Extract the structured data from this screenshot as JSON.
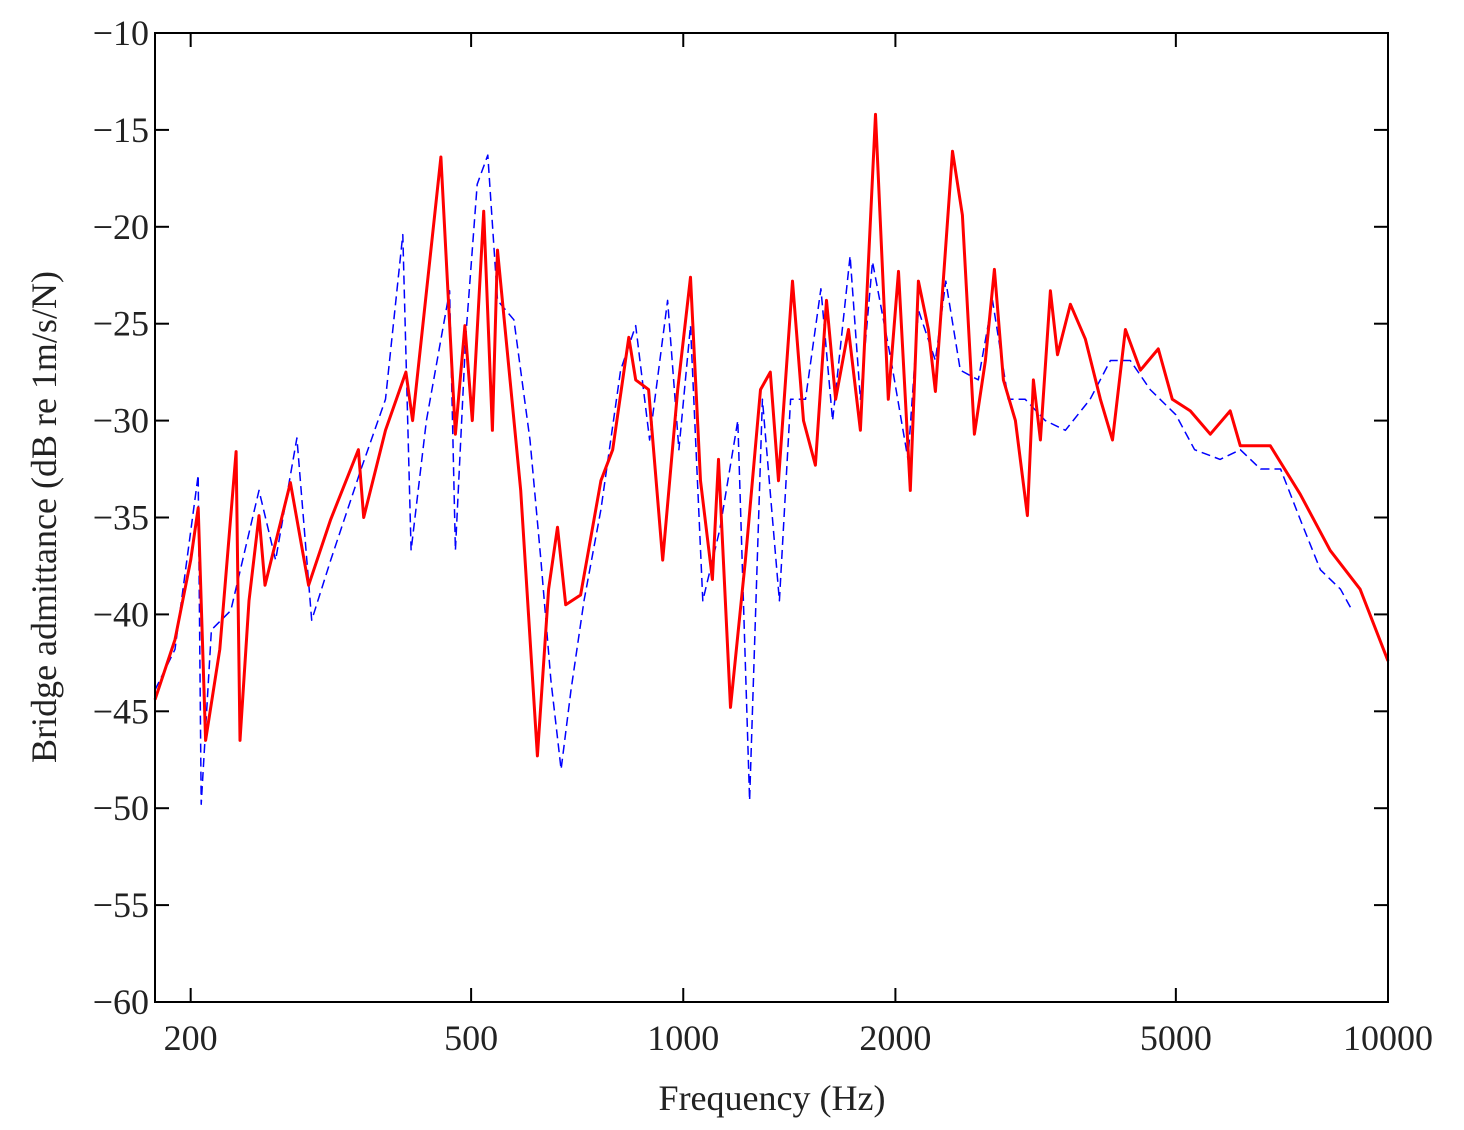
{
  "chart_data": {
    "type": "line",
    "xlabel": "Frequency (Hz)",
    "ylabel": "Bridge admittance (dB re 1m/s/N)",
    "xscale": "log",
    "xlim": [
      178,
      10000
    ],
    "ylim": [
      -60,
      -10
    ],
    "xticks": [
      200,
      500,
      1000,
      2000,
      5000,
      10000
    ],
    "yticks": [
      {
        "value": -60,
        "label": "−60"
      },
      {
        "value": -55,
        "label": "−55"
      },
      {
        "value": -50,
        "label": "−50"
      },
      {
        "value": -45,
        "label": "−45"
      },
      {
        "value": -40,
        "label": "−40"
      },
      {
        "value": -35,
        "label": "−35"
      },
      {
        "value": -30,
        "label": "−30"
      },
      {
        "value": -25,
        "label": "−25"
      },
      {
        "value": -20,
        "label": "−20"
      },
      {
        "value": -15,
        "label": "−15"
      },
      {
        "value": -10,
        "label": "−10"
      }
    ],
    "grid": false,
    "series": [
      {
        "color": "#0000ff",
        "dash": true,
        "x": [
          178,
          190,
          205,
          207,
          214,
          228,
          250,
          264,
          283,
          297,
          316,
          349,
          378,
          400,
          411,
          432,
          466,
          475,
          491,
          510,
          528,
          545,
          575,
          606,
          628,
          649,
          671,
          693,
          723,
          764,
          815,
          856,
          896,
          950,
          986,
          1024,
          1066,
          1127,
          1195,
          1242,
          1295,
          1369,
          1420,
          1491,
          1568,
          1629,
          1725,
          1784,
          1856,
          1972,
          2084,
          2156,
          2279,
          2358,
          2472,
          2622,
          2747,
          2891,
          3056,
          3264,
          3485,
          3778,
          4038,
          4309,
          4598,
          5000,
          5316,
          5777,
          6171,
          6592,
          7041,
          7507,
          8018,
          8562,
          8895
        ],
        "values": [
          -43.9,
          -41.8,
          -32.8,
          -49.8,
          -40.8,
          -39.8,
          -33.6,
          -37.2,
          -30.9,
          -40.3,
          -37.2,
          -32.5,
          -28.9,
          -20.4,
          -36.7,
          -30.0,
          -23.3,
          -36.7,
          -25.8,
          -17.8,
          -16.3,
          -23.8,
          -24.8,
          -31.0,
          -37.2,
          -43.4,
          -48.0,
          -43.9,
          -39.3,
          -34.6,
          -27.4,
          -25.1,
          -31.0,
          -23.8,
          -31.5,
          -25.1,
          -39.3,
          -35.6,
          -30.0,
          -49.6,
          -28.9,
          -39.3,
          -28.9,
          -28.9,
          -23.2,
          -30.0,
          -21.5,
          -28.9,
          -21.8,
          -26.9,
          -32.0,
          -24.3,
          -26.9,
          -22.8,
          -27.4,
          -27.9,
          -23.8,
          -28.9,
          -28.9,
          -30.0,
          -30.5,
          -28.9,
          -26.9,
          -26.9,
          -28.4,
          -29.7,
          -31.5,
          -32.0,
          -31.5,
          -32.5,
          -32.5,
          -35.1,
          -37.7,
          -38.7,
          -39.8
        ]
      },
      {
        "color": "#ff0000",
        "dash": false,
        "x": [
          178,
          190,
          200,
          205,
          210,
          220,
          232,
          235,
          242,
          250,
          255,
          277,
          294,
          316,
          346,
          352,
          378,
          404,
          413,
          453,
          475,
          490,
          502,
          521,
          536,
          545,
          588,
          621,
          644,
          663,
          681,
          715,
          764,
          794,
          837,
          856,
          893,
          935,
          982,
          1024,
          1058,
          1100,
          1122,
          1167,
          1225,
          1287,
          1329,
          1365,
          1429,
          1481,
          1540,
          1597,
          1645,
          1716,
          1784,
          1874,
          1954,
          2020,
          2100,
          2156,
          2228,
          2279,
          2410,
          2489,
          2589,
          2684,
          2764,
          2846,
          2960,
          3078,
          3139,
          3212,
          3319,
          3396,
          3543,
          3721,
          3908,
          4065,
          4240,
          4453,
          4721,
          4943,
          5241,
          5595,
          5972,
          6171,
          6807,
          7507,
          8279,
          9130,
          10000
        ],
        "values": [
          -44.4,
          -41.3,
          -37.2,
          -34.5,
          -46.5,
          -41.8,
          -31.6,
          -46.5,
          -39.3,
          -34.9,
          -38.5,
          -33.2,
          -38.5,
          -35.1,
          -31.5,
          -35.0,
          -30.5,
          -27.5,
          -30.0,
          -16.4,
          -30.7,
          -25.1,
          -30.0,
          -19.2,
          -30.5,
          -21.2,
          -33.6,
          -47.3,
          -38.7,
          -35.5,
          -39.5,
          -39.0,
          -33.1,
          -31.5,
          -25.7,
          -27.9,
          -28.4,
          -37.2,
          -28.4,
          -22.6,
          -33.1,
          -38.2,
          -32.0,
          -44.8,
          -37.2,
          -28.4,
          -27.5,
          -33.1,
          -22.8,
          -30.0,
          -32.3,
          -23.8,
          -28.9,
          -25.3,
          -30.5,
          -14.2,
          -28.9,
          -22.3,
          -33.6,
          -22.8,
          -25.3,
          -28.5,
          -16.1,
          -19.4,
          -30.7,
          -26.9,
          -22.2,
          -27.9,
          -30.0,
          -34.9,
          -27.9,
          -31.0,
          -23.3,
          -26.6,
          -24.0,
          -25.8,
          -28.9,
          -31.0,
          -25.3,
          -27.4,
          -26.3,
          -28.9,
          -29.5,
          -30.7,
          -29.5,
          -31.3,
          -31.3,
          -33.8,
          -36.7,
          -38.7,
          -42.4
        ]
      }
    ]
  }
}
